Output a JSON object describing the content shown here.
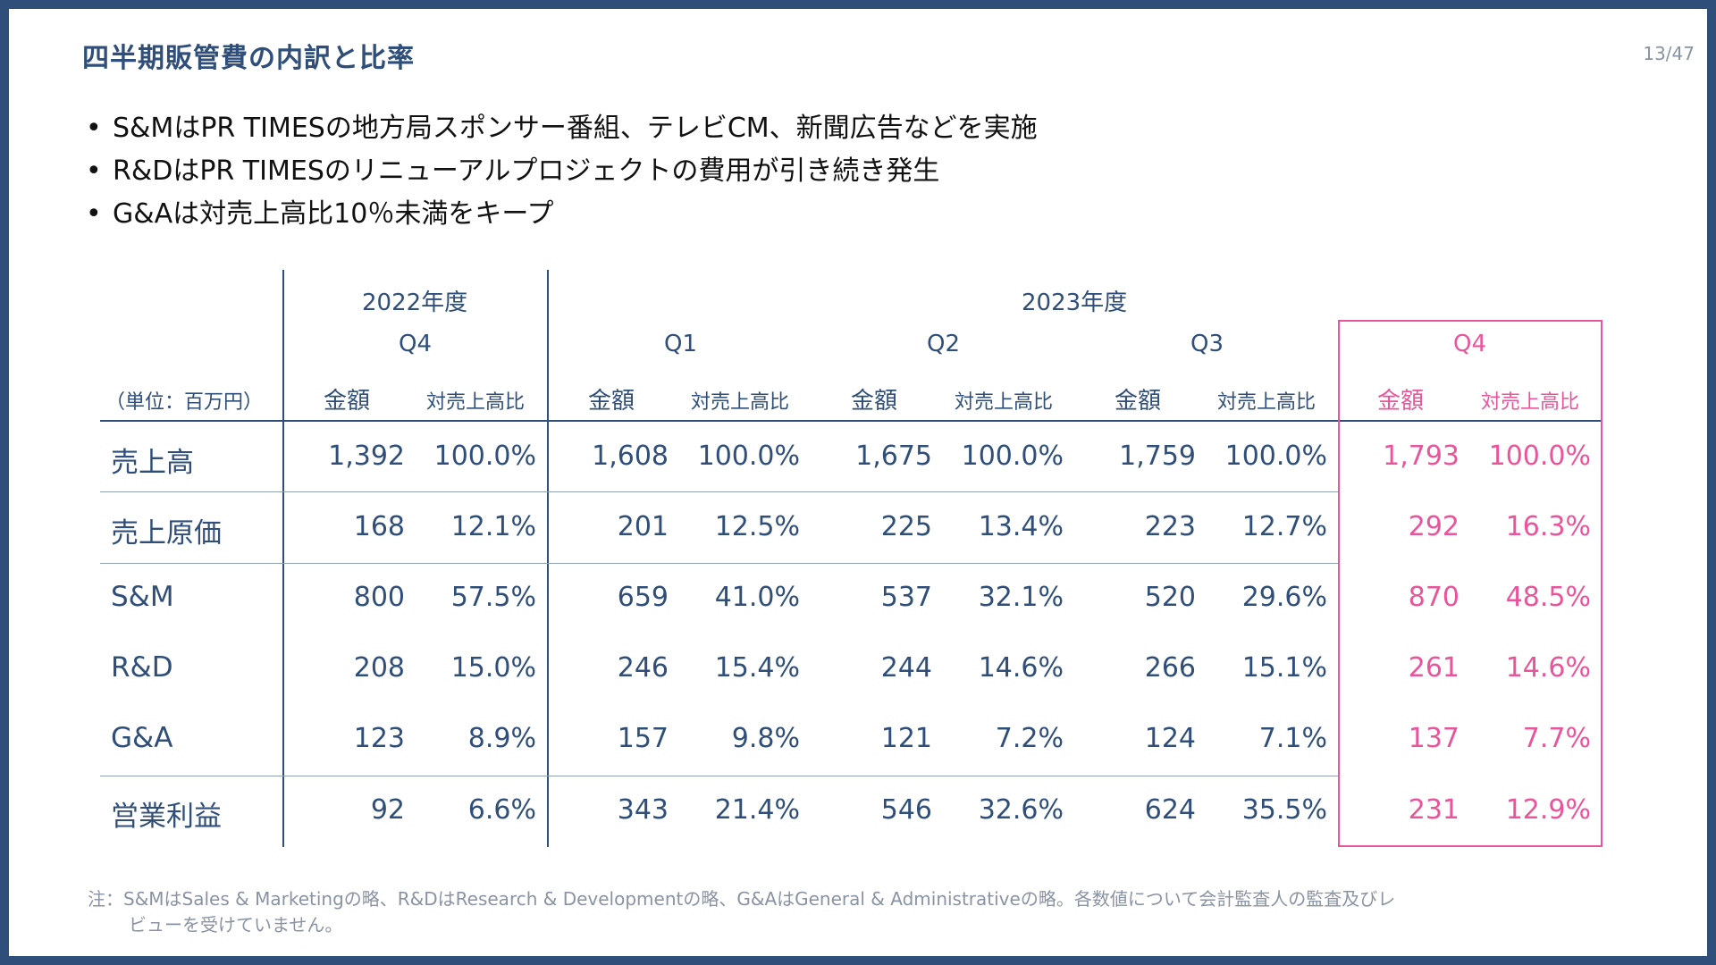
{
  "title": "四半期販管費の内訳と比率",
  "page_number": "13/47",
  "bullets": [
    "S&MはPR TIMESの地方局スポンサー番組、テレビCM、新聞広告などを実施",
    "R&DはPR TIMESのリニューアルプロジェクトの費用が引き続き発生",
    "G&Aは対売上高比10％未満をキープ"
  ],
  "table": {
    "unit_label": "（単位：百万円）",
    "years": [
      "2022年度",
      "2023年度"
    ],
    "quarters": [
      "Q4",
      "Q1",
      "Q2",
      "Q3",
      "Q4"
    ],
    "col_amount": "金額",
    "col_ratio": "対売上高比",
    "rows": [
      {
        "label": "売上高",
        "values": [
          [
            "1,392",
            "100.0%"
          ],
          [
            "1,608",
            "100.0%"
          ],
          [
            "1,675",
            "100.0%"
          ],
          [
            "1,759",
            "100.0%"
          ],
          [
            "1,793",
            "100.0%"
          ]
        ]
      },
      {
        "label": "売上原価",
        "values": [
          [
            "168",
            "12.1%"
          ],
          [
            "201",
            "12.5%"
          ],
          [
            "225",
            "13.4%"
          ],
          [
            "223",
            "12.7%"
          ],
          [
            "292",
            "16.3%"
          ]
        ]
      },
      {
        "label": "S&M",
        "values": [
          [
            "800",
            "57.5%"
          ],
          [
            "659",
            "41.0%"
          ],
          [
            "537",
            "32.1%"
          ],
          [
            "520",
            "29.6%"
          ],
          [
            "870",
            "48.5%"
          ]
        ]
      },
      {
        "label": "R&D",
        "values": [
          [
            "208",
            "15.0%"
          ],
          [
            "246",
            "15.4%"
          ],
          [
            "244",
            "14.6%"
          ],
          [
            "266",
            "15.1%"
          ],
          [
            "261",
            "14.6%"
          ]
        ]
      },
      {
        "label": "G&A",
        "values": [
          [
            "123",
            "8.9%"
          ],
          [
            "157",
            "9.8%"
          ],
          [
            "121",
            "7.2%"
          ],
          [
            "124",
            "7.1%"
          ],
          [
            "137",
            "7.7%"
          ]
        ]
      },
      {
        "label": "営業利益",
        "values": [
          [
            "92",
            "6.6%"
          ],
          [
            "343",
            "21.4%"
          ],
          [
            "546",
            "32.6%"
          ],
          [
            "624",
            "35.5%"
          ],
          [
            "231",
            "12.9%"
          ]
        ]
      }
    ]
  },
  "note_line1": "注：S&MはSales & Marketingの略、R&DはResearch & Developmentの略、G&AはGeneral & Administrativeの略。各数値について会計監査人の監査及びレ",
  "note_line2": "ビューを受けていません。",
  "colors": {
    "navy": "#2f4f7a",
    "highlight": "#e8559a"
  }
}
